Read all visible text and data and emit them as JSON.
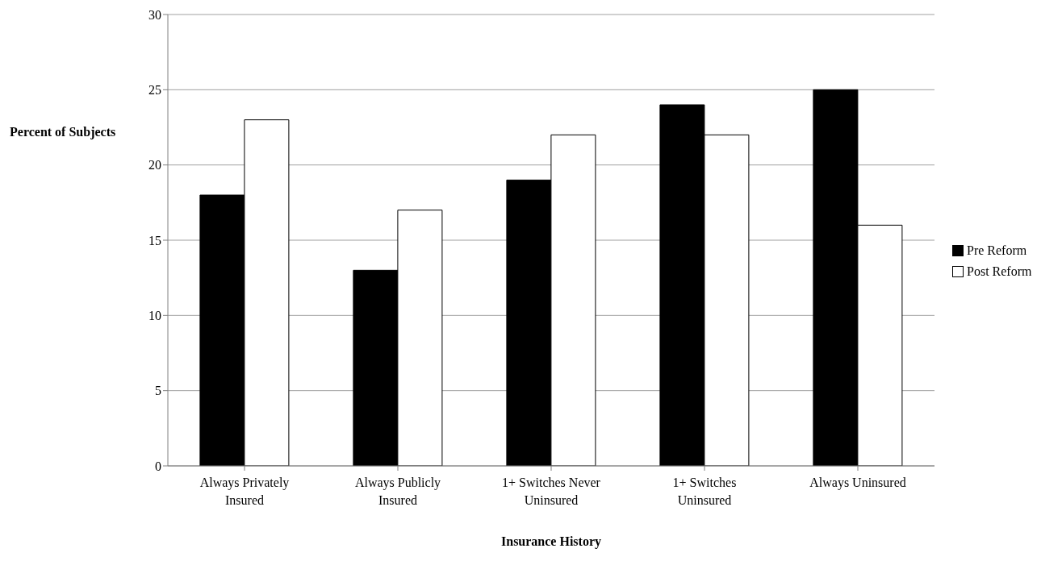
{
  "chart_data": {
    "type": "bar",
    "xlabel": "Insurance History",
    "ylabel": "Percent of Subjects",
    "categories": [
      "Always Privately Insured",
      "Always Publicly Insured",
      "1+ Switches Never Uninsured",
      "1+ Switches Uninsured",
      "Always Uninsured"
    ],
    "series": [
      {
        "name": "Pre Reform",
        "color": "#000000",
        "values": [
          18,
          13,
          19,
          24,
          25
        ]
      },
      {
        "name": "Post Reform",
        "color": "#ffffff",
        "values": [
          23,
          17,
          22,
          22,
          16
        ]
      }
    ],
    "ylim": [
      0,
      30
    ],
    "yticks": [
      0,
      5,
      10,
      15,
      20,
      25,
      30
    ],
    "grid": "y",
    "legend": "right"
  }
}
